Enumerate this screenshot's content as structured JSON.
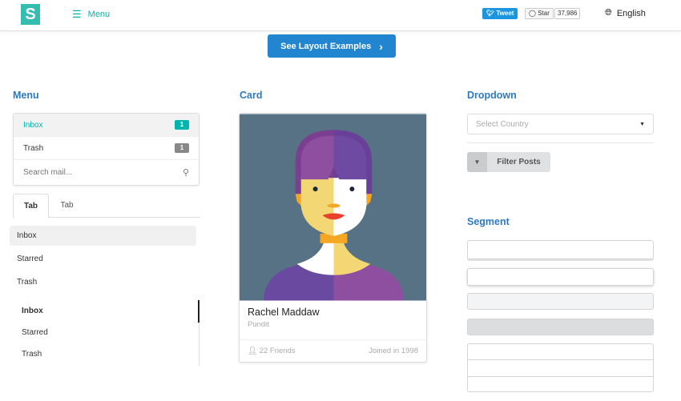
{
  "header": {
    "logo": "S",
    "menu": "Menu",
    "tweet": "Tweet",
    "star": "Star",
    "star_count": "37,986",
    "language": "English"
  },
  "cta": {
    "label": "See Layout Examples"
  },
  "menu_section": {
    "title": "Menu",
    "items": [
      {
        "label": "Inbox",
        "count": "1",
        "active": true
      },
      {
        "label": "Trash",
        "count": "1"
      }
    ],
    "search_placeholder": "Search mail..."
  },
  "tabs": [
    {
      "label": "Tab",
      "active": true
    },
    {
      "label": "Tab"
    }
  ],
  "vertical_menu": [
    "Inbox",
    "Starred",
    "Trash"
  ],
  "secondary_menu": [
    "Inbox",
    "Starred",
    "Trash"
  ],
  "card_section": {
    "title": "Card",
    "name": "Rachel Maddaw",
    "meta": "Pundit",
    "friends": "22 Friends",
    "joined": "Joined in 1998"
  },
  "dropdown_section": {
    "title": "Dropdown",
    "placeholder": "Select Country",
    "filter": "Filter Posts"
  },
  "segment_section": {
    "title": "Segment"
  },
  "colors": {
    "teal": "#00b5ad",
    "blue": "#2185d0",
    "heading": "#2e7ac2",
    "grey_badge": "#888888"
  }
}
